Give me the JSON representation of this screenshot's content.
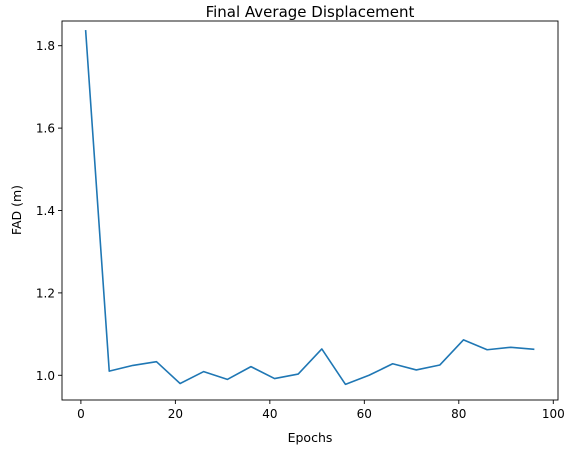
{
  "chart_data": {
    "type": "line",
    "title": "Final Average Displacement",
    "xlabel": "Epochs",
    "ylabel": "FAD (m)",
    "xlim": [
      -4,
      101
    ],
    "ylim": [
      0.94,
      1.86
    ],
    "xticks": [
      0,
      20,
      40,
      60,
      80,
      100
    ],
    "yticks": [
      1.0,
      1.2,
      1.4,
      1.6,
      1.8
    ],
    "grid": false,
    "series": [
      {
        "color": "#1f77b4",
        "x": [
          1,
          6,
          11,
          16,
          21,
          26,
          31,
          36,
          41,
          46,
          51,
          56,
          61,
          66,
          71,
          76,
          81,
          86,
          91,
          96
        ],
        "y": [
          1.838,
          1.01,
          1.024,
          1.033,
          0.98,
          1.009,
          0.99,
          1.021,
          0.992,
          1.003,
          1.064,
          0.978,
          1.0,
          1.028,
          1.013,
          1.025,
          1.086,
          1.062,
          1.068,
          1.063
        ]
      }
    ]
  }
}
